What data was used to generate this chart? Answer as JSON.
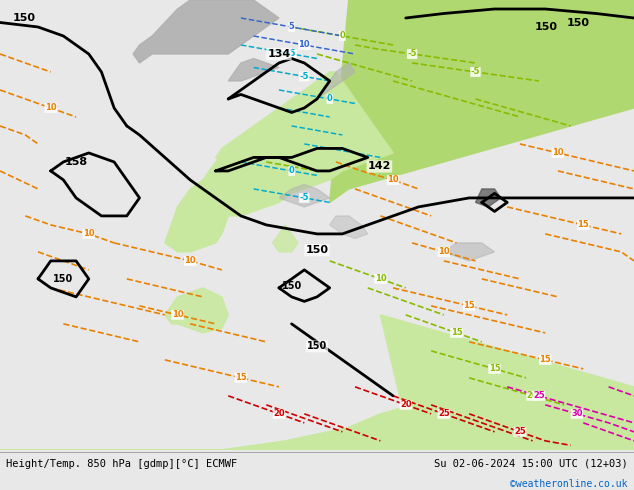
{
  "title_left": "Height/Temp. 850 hPa [gdmp][°C] ECMWF",
  "title_right": "Su 02-06-2024 15:00 UTC (12+03)",
  "credit": "©weatheronline.co.uk",
  "fig_width": 6.34,
  "fig_height": 4.9,
  "dpi": 100,
  "bg_land_light": "#c8e8a0",
  "bg_land_medium": "#b0d870",
  "bg_ocean": "#e8e8e8",
  "bg_gray": "#b0b0b0",
  "bg_white": "#f0f0f0",
  "bottom_bar_color": "#f0f0f0",
  "bottom_text_color": "#000000",
  "credit_color": "#0066cc",
  "c_black": "#000000",
  "c_orange": "#e88000",
  "c_green": "#88bb00",
  "c_cyan": "#00aacc",
  "c_blue": "#3366cc",
  "c_red": "#cc0000",
  "c_magenta": "#dd00aa"
}
